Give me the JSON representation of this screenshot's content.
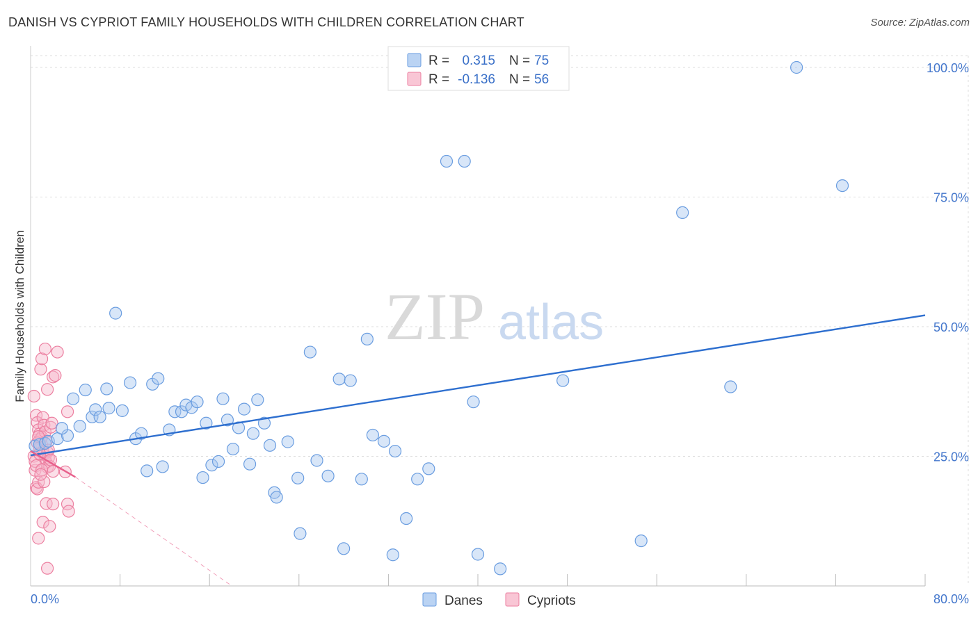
{
  "title": "DANISH VS CYPRIOT FAMILY HOUSEHOLDS WITH CHILDREN CORRELATION CHART",
  "source": "Source: ZipAtlas.com",
  "watermark": {
    "zip": "ZIP",
    "atlas": "atlas"
  },
  "colors": {
    "danes_fill": "#a9c8f0",
    "danes_stroke": "#6a9de0",
    "danes_line": "#2e6fcf",
    "cypriots_fill": "#f7b8cb",
    "cypriots_stroke": "#ec7fa0",
    "cypriots_line": "#e8608c",
    "grid": "#dddddd",
    "axis_text": "#4477cc"
  },
  "legend": {
    "rows": [
      {
        "r_label": "R =",
        "r_value": "0.315",
        "n_label": "N =",
        "n_value": "75"
      },
      {
        "r_label": "R =",
        "r_value": "-0.136",
        "n_label": "N =",
        "n_value": "56"
      }
    ]
  },
  "bottom_legend": {
    "danes": "Danes",
    "cypriots": "Cypriots"
  },
  "chart_data": {
    "type": "scatter",
    "title": "DANISH VS CYPRIOT FAMILY HOUSEHOLDS WITH CHILDREN CORRELATION CHART",
    "xlabel": "",
    "ylabel": "Family Households with Children",
    "xlim": [
      0,
      80
    ],
    "ylim": [
      0,
      100
    ],
    "x_tick_labels": {
      "min": "0.0%",
      "max": "80.0%"
    },
    "y_ticks": [
      {
        "value": 25,
        "label": "25.0%"
      },
      {
        "value": 50,
        "label": "50.0%"
      },
      {
        "value": 75,
        "label": "75.0%"
      },
      {
        "value": 100,
        "label": "100.0%"
      }
    ],
    "grid": true,
    "legend_position": "top-center",
    "series": [
      {
        "name": "Danes",
        "r": 0.315,
        "n": 75,
        "trend": {
          "x0": 0,
          "y0": 25.2,
          "x1": 80,
          "y1": 52.2
        },
        "points": [
          [
            0.4,
            27.0
          ],
          [
            0.8,
            27.3
          ],
          [
            1.3,
            27.5
          ],
          [
            1.6,
            27.9
          ],
          [
            2.4,
            28.4
          ],
          [
            3.3,
            29.0
          ],
          [
            2.8,
            30.4
          ],
          [
            4.4,
            30.8
          ],
          [
            3.8,
            36.1
          ],
          [
            4.9,
            37.8
          ],
          [
            5.5,
            32.6
          ],
          [
            5.8,
            34.0
          ],
          [
            6.2,
            32.6
          ],
          [
            6.8,
            38.0
          ],
          [
            7.6,
            52.6
          ],
          [
            7.0,
            34.3
          ],
          [
            8.2,
            33.8
          ],
          [
            8.9,
            39.2
          ],
          [
            9.4,
            28.4
          ],
          [
            9.9,
            29.4
          ],
          [
            10.4,
            22.2
          ],
          [
            10.9,
            38.9
          ],
          [
            11.4,
            40.0
          ],
          [
            11.8,
            23.0
          ],
          [
            12.4,
            30.1
          ],
          [
            12.9,
            33.6
          ],
          [
            13.5,
            33.6
          ],
          [
            13.9,
            34.9
          ],
          [
            14.4,
            34.4
          ],
          [
            14.9,
            35.5
          ],
          [
            15.4,
            20.9
          ],
          [
            15.7,
            31.4
          ],
          [
            16.2,
            23.3
          ],
          [
            16.8,
            24.0
          ],
          [
            17.2,
            36.1
          ],
          [
            17.6,
            32.0
          ],
          [
            18.1,
            26.4
          ],
          [
            18.6,
            30.5
          ],
          [
            19.1,
            34.1
          ],
          [
            19.6,
            23.5
          ],
          [
            19.9,
            29.4
          ],
          [
            20.3,
            35.9
          ],
          [
            20.9,
            31.4
          ],
          [
            21.4,
            27.1
          ],
          [
            21.8,
            18.0
          ],
          [
            22.0,
            17.1
          ],
          [
            23.0,
            27.8
          ],
          [
            23.9,
            20.8
          ],
          [
            24.1,
            10.1
          ],
          [
            25.0,
            45.1
          ],
          [
            25.6,
            24.2
          ],
          [
            26.6,
            21.2
          ],
          [
            27.6,
            39.9
          ],
          [
            28.0,
            7.2
          ],
          [
            28.6,
            39.6
          ],
          [
            29.6,
            20.6
          ],
          [
            30.1,
            47.6
          ],
          [
            30.6,
            29.1
          ],
          [
            31.6,
            27.9
          ],
          [
            32.4,
            6.0
          ],
          [
            32.6,
            26.0
          ],
          [
            33.6,
            13.0
          ],
          [
            34.6,
            20.6
          ],
          [
            35.6,
            22.6
          ],
          [
            37.2,
            81.9
          ],
          [
            38.8,
            81.9
          ],
          [
            39.6,
            35.5
          ],
          [
            40.0,
            6.1
          ],
          [
            42.0,
            3.3
          ],
          [
            47.6,
            39.6
          ],
          [
            54.6,
            8.7
          ],
          [
            58.3,
            72.0
          ],
          [
            62.6,
            38.4
          ],
          [
            68.5,
            100.0
          ],
          [
            72.6,
            77.2
          ]
        ]
      },
      {
        "name": "Cypriots",
        "r": -0.136,
        "n": 56,
        "trend": {
          "x0": 0,
          "y0": 26.0,
          "x1": 4.0,
          "y1": 21.0
        },
        "trend_extension": {
          "x0": 4.0,
          "y0": 21.0,
          "x1": 18.0,
          "y1": 0.0
        },
        "points": [
          [
            0.3,
            36.6
          ],
          [
            0.5,
            32.9
          ],
          [
            0.6,
            31.5
          ],
          [
            0.7,
            30.1
          ],
          [
            0.8,
            29.3
          ],
          [
            0.9,
            28.3
          ],
          [
            1.0,
            27.2
          ],
          [
            1.1,
            26.0
          ],
          [
            1.2,
            25.3
          ],
          [
            1.3,
            24.5
          ],
          [
            1.4,
            23.8
          ],
          [
            1.5,
            22.9
          ],
          [
            0.4,
            22.3
          ],
          [
            0.5,
            19.0
          ],
          [
            0.6,
            18.7
          ],
          [
            0.7,
            20.0
          ],
          [
            0.8,
            26.7
          ],
          [
            0.9,
            41.8
          ],
          [
            1.0,
            28.7
          ],
          [
            1.1,
            32.5
          ],
          [
            1.2,
            31.0
          ],
          [
            1.3,
            29.7
          ],
          [
            1.4,
            27.9
          ],
          [
            1.5,
            25.8
          ],
          [
            1.6,
            24.7
          ],
          [
            1.7,
            23.1
          ],
          [
            1.8,
            30.6
          ],
          [
            1.9,
            31.4
          ],
          [
            2.0,
            40.3
          ],
          [
            2.2,
            40.6
          ],
          [
            1.0,
            43.8
          ],
          [
            1.3,
            45.7
          ],
          [
            1.5,
            37.9
          ],
          [
            2.4,
            45.1
          ],
          [
            1.6,
            26.2
          ],
          [
            1.8,
            24.3
          ],
          [
            2.0,
            22.1
          ],
          [
            0.3,
            25.0
          ],
          [
            0.4,
            24.0
          ],
          [
            0.5,
            23.2
          ],
          [
            0.6,
            27.6
          ],
          [
            0.7,
            28.8
          ],
          [
            0.8,
            25.5
          ],
          [
            1.0,
            22.4
          ],
          [
            1.2,
            20.1
          ],
          [
            1.1,
            12.3
          ],
          [
            0.7,
            9.2
          ],
          [
            1.4,
            15.9
          ],
          [
            1.5,
            3.4
          ],
          [
            1.7,
            11.5
          ],
          [
            2.0,
            15.8
          ],
          [
            3.3,
            33.6
          ],
          [
            3.1,
            22.0
          ],
          [
            3.3,
            15.8
          ],
          [
            3.4,
            14.4
          ],
          [
            0.9,
            21.5
          ]
        ]
      }
    ]
  }
}
